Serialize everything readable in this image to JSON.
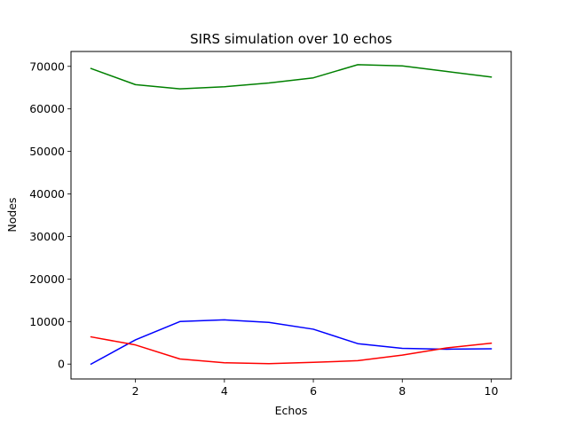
{
  "chart_data": {
    "type": "line",
    "title": "SIRS simulation over 10 echos",
    "xlabel": "Echos",
    "ylabel": "Nodes",
    "xlim": [
      0.55,
      10.45
    ],
    "ylim": [
      -3500,
      73500
    ],
    "xticks": [
      2,
      4,
      6,
      8,
      10
    ],
    "yticks": [
      0,
      10000,
      20000,
      30000,
      40000,
      50000,
      60000,
      70000
    ],
    "x": [
      1,
      2,
      3,
      4,
      5,
      6,
      7,
      8,
      9,
      10
    ],
    "grid": false,
    "series": [
      {
        "color": "#008000",
        "values": [
          69500,
          65700,
          64700,
          65200,
          66100,
          67300,
          70400,
          70100,
          68800,
          67500
        ]
      },
      {
        "color": "#0000ff",
        "values": [
          0,
          5700,
          10000,
          10400,
          9800,
          8200,
          4800,
          3700,
          3500,
          3600
        ]
      },
      {
        "color": "#ff0000",
        "values": [
          6400,
          4500,
          1200,
          300,
          100,
          400,
          800,
          2100,
          3800,
          4900
        ]
      }
    ]
  }
}
